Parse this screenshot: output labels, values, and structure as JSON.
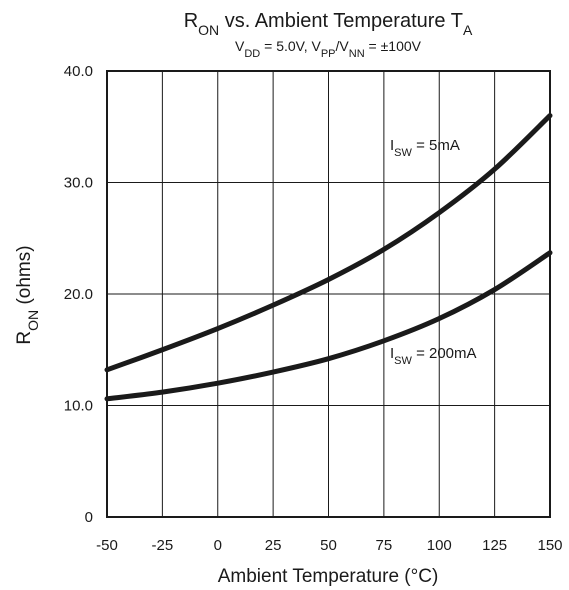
{
  "chart_data": {
    "type": "line",
    "title": {
      "main": "R",
      "main_sub": "ON",
      "main_rest": " vs. Ambient Temperature T",
      "main_sub2": "A"
    },
    "subtitle": {
      "p1": "V",
      "p1_sub": "DD",
      "p2": " = 5.0V, V",
      "p2_sub": "PP",
      "p3": "/V",
      "p3_sub": "NN",
      "p4": " = ±100V"
    },
    "xlabel": "Ambient Temperature (°C)",
    "ylabel": {
      "main": "R",
      "sub": "ON",
      "rest": " (ohms)"
    },
    "xlim": [
      -50,
      150
    ],
    "ylim": [
      0,
      40
    ],
    "x_ticks": [
      -50,
      -25,
      0,
      25,
      50,
      75,
      100,
      125,
      150
    ],
    "x_tick_labels": [
      "-50",
      "-25",
      "0",
      "25",
      "50",
      "75",
      "100",
      "125",
      "150"
    ],
    "y_ticks": [
      0,
      10,
      20,
      30,
      40
    ],
    "y_tick_labels": [
      "0",
      "10.0",
      "20.0",
      "30.0",
      "40.0"
    ],
    "grid": true,
    "series": [
      {
        "label_main": "I",
        "label_sub": "SW",
        "label_rest": " = 5mA",
        "x": [
          -50,
          -25,
          0,
          25,
          50,
          75,
          100,
          125,
          150
        ],
        "y": [
          13.2,
          15.0,
          16.9,
          19.0,
          21.3,
          24.0,
          27.3,
          31.2,
          36.0
        ]
      },
      {
        "label_main": "I",
        "label_sub": "SW",
        "label_rest": " = 200mA",
        "x": [
          -50,
          -25,
          0,
          25,
          50,
          75,
          100,
          125,
          150
        ],
        "y": [
          10.6,
          11.2,
          12.0,
          13.0,
          14.2,
          15.8,
          17.8,
          20.4,
          23.7
        ]
      }
    ]
  }
}
